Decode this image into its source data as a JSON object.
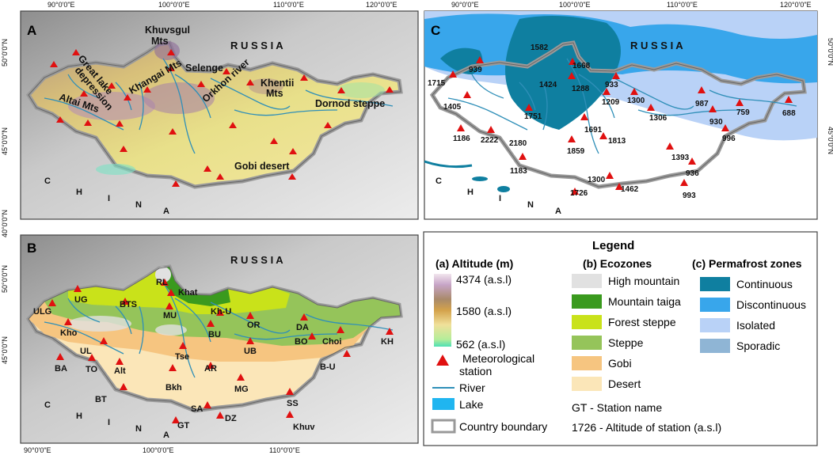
{
  "panels": {
    "a": "A",
    "b": "B",
    "c": "C"
  },
  "coords": {
    "lon_top_a": [
      "90°0'0\"E",
      "100°0'0\"E",
      "110°0'0\"E",
      "120°0'0\"E"
    ],
    "lon_top_c": [
      "90°0'0\"E",
      "100°0'0\"E",
      "110°0'0\"E",
      "120°0'0\"E"
    ],
    "lon_bottom": [
      "90°0'0\"E",
      "100°0'0\"E",
      "110°0'0\"E"
    ],
    "lat_a": [
      "50°0'0\"N",
      "45°0'0\"N",
      "40°0'0\"N"
    ],
    "lat_b": [
      "50°0'0\"N",
      "45°0'0\"N"
    ],
    "lat_c": [
      "50°0'0\"N",
      "45°0'0\"N"
    ]
  },
  "map_a": {
    "russia": "R U S S I A",
    "china": [
      "C",
      "H",
      "I",
      "N",
      "A"
    ],
    "features": [
      {
        "t": "Khuvsgul"
      },
      {
        "t": "Mts"
      },
      {
        "t": "Selenge"
      },
      {
        "t": "Orkhon river"
      },
      {
        "t": "Khentii"
      },
      {
        "t": "Mts"
      },
      {
        "t": "Great lake"
      },
      {
        "t": "depression"
      },
      {
        "t": "Khangai Mts"
      },
      {
        "t": "Altai Mts"
      },
      {
        "t": "Dornod steppe"
      },
      {
        "t": "Gobi desert"
      }
    ]
  },
  "map_b": {
    "russia": "R U S S I A",
    "china": [
      "C",
      "H",
      "I",
      "N",
      "A"
    ],
    "stations": [
      "RL",
      "Khat",
      "UG",
      "ULG",
      "BTS",
      "MU",
      "Kh-U",
      "OR",
      "DA",
      "Kho",
      "BU",
      "BO",
      "Choi",
      "KH",
      "UL",
      "UB",
      "Tse",
      "B-U",
      "BA",
      "TO",
      "Alt",
      "Bkh",
      "AR",
      "MG",
      "BT",
      "SS",
      "SA",
      "DZ",
      "GT",
      "Khuv"
    ]
  },
  "map_c": {
    "russia": "R U S S I A",
    "china": [
      "C",
      "H",
      "I",
      "N",
      "A"
    ],
    "stations": [
      "1582",
      "1668",
      "939",
      "1715",
      "1424",
      "1288",
      "933",
      "1405",
      "1209",
      "1300",
      "987",
      "1751",
      "1306",
      "759",
      "688",
      "930",
      "1691",
      "1186",
      "2222",
      "2180",
      "1813",
      "996",
      "1859",
      "1393",
      "1183",
      "936",
      "1300",
      "1726",
      "1462",
      "993"
    ]
  },
  "legend": {
    "title": "Legend",
    "altitude": {
      "heading": "(a) Altitude (m)",
      "max": "4374 (a.s.l)",
      "mid": "1580  (a.s.l)",
      "min": "562 (a.s.l)"
    },
    "symbols": {
      "station": "Meteorological station",
      "river": "River",
      "lake": "Lake",
      "boundary": "Country boundary"
    },
    "ecozones": {
      "heading": "(b) Ecozones",
      "items": [
        {
          "label": "High mountain",
          "color": "#e1e1e1"
        },
        {
          "label": "Mountain taiga",
          "color": "#3a9a1e"
        },
        {
          "label": "Forest steppe",
          "color": "#c9e21a"
        },
        {
          "label": "Steppe",
          "color": "#95c45a"
        },
        {
          "label": "Gobi",
          "color": "#f6c580"
        },
        {
          "label": "Desert",
          "color": "#fbe6b8"
        }
      ]
    },
    "permafrost": {
      "heading": "(c) Permafrost zones",
      "items": [
        {
          "label": "Continuous",
          "color": "#0f7fa0"
        },
        {
          "label": "Discontinuous",
          "color": "#38a6eb"
        },
        {
          "label": "Isolated",
          "color": "#b9d2f7"
        },
        {
          "label": "Sporadic",
          "color": "#8fb5d5"
        }
      ]
    },
    "notes": {
      "station_name": "GT - Station name",
      "altitude_note": "1726 - Altitude of station (a.s.l)"
    }
  }
}
